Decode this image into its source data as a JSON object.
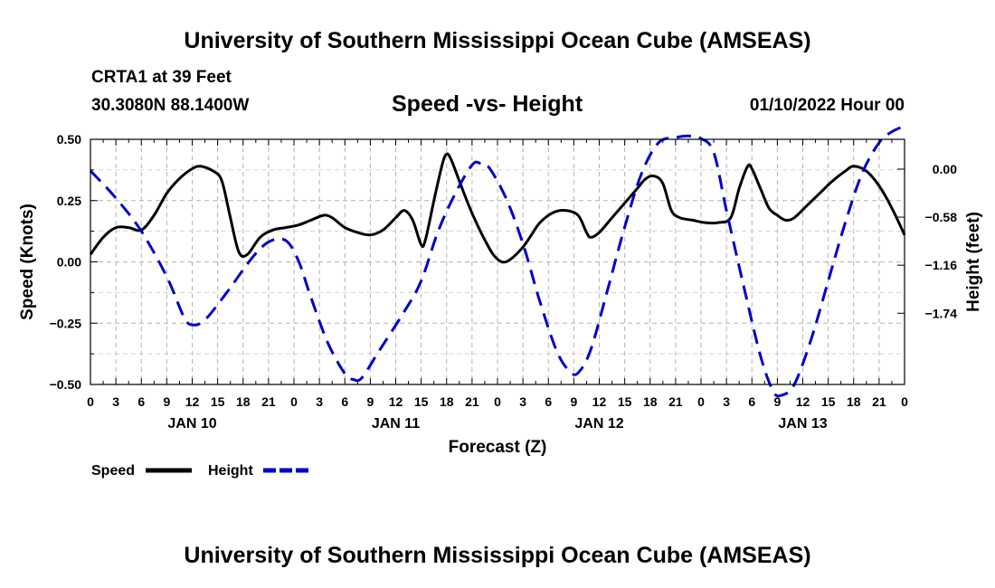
{
  "header": {
    "title": "University of Southern Mississippi Ocean Cube (AMSEAS)",
    "station": "CRTA1 at 39 Feet",
    "coords": "30.3080N  88.1400W",
    "subtitle": "Speed -vs- Height",
    "datetime": "01/10/2022 Hour 00"
  },
  "footer": {
    "title": "University of Southern Mississippi Ocean Cube (AMSEAS)"
  },
  "chart_data": {
    "type": "line",
    "title": "Speed -vs- Height",
    "xlabel": "Forecast (Z)",
    "ylabel": "Speed (Knots)",
    "y2label": "Height (feet)",
    "x_unit": "forecast hours from 01/10/2022 00Z",
    "xlim": [
      0,
      96
    ],
    "ylim": [
      -0.5,
      0.5
    ],
    "y2lim": [
      -2.6,
      0.36
    ],
    "x_ticks": [
      0,
      3,
      6,
      9,
      12,
      15,
      18,
      21,
      24,
      27,
      30,
      33,
      36,
      39,
      42,
      45,
      48,
      51,
      54,
      57,
      60,
      63,
      66,
      69,
      72,
      75,
      78,
      81,
      84,
      87,
      90,
      93,
      96
    ],
    "x_tick_labels": [
      "0",
      "3",
      "6",
      "9",
      "12",
      "15",
      "18",
      "21",
      "0",
      "3",
      "6",
      "9",
      "12",
      "15",
      "18",
      "21",
      "0",
      "3",
      "6",
      "9",
      "12",
      "15",
      "18",
      "21",
      "0",
      "3",
      "6",
      "9",
      "12",
      "15",
      "18",
      "21",
      "0"
    ],
    "y_ticks": [
      0.5,
      0.25,
      0.0,
      -0.25,
      -0.5
    ],
    "y_tick_labels": [
      "0.50",
      "0.25",
      "0.00",
      "−0.25",
      "−0.50"
    ],
    "y2_ticks": [
      0.0,
      -0.58,
      -1.16,
      -1.74
    ],
    "y2_tick_labels": [
      "0.00",
      "−0.58",
      "−1.16",
      "−1.74"
    ],
    "date_labels": [
      {
        "x": 12,
        "label": "JAN 10"
      },
      {
        "x": 36,
        "label": "JAN 11"
      },
      {
        "x": 60,
        "label": "JAN 12"
      },
      {
        "x": 84,
        "label": "JAN 13"
      }
    ],
    "grid": true,
    "legend_position": "bottom-left",
    "series": [
      {
        "name": "Speed",
        "axis": "left",
        "color": "#000000",
        "dash": "solid",
        "points": [
          [
            0,
            0.03
          ],
          [
            1.5,
            0.1
          ],
          [
            3,
            0.14
          ],
          [
            4.5,
            0.14
          ],
          [
            6,
            0.13
          ],
          [
            7.5,
            0.19
          ],
          [
            9,
            0.28
          ],
          [
            10.5,
            0.34
          ],
          [
            12,
            0.38
          ],
          [
            13,
            0.39
          ],
          [
            14.5,
            0.37
          ],
          [
            15.5,
            0.33
          ],
          [
            16.5,
            0.18
          ],
          [
            17.5,
            0.04
          ],
          [
            18.5,
            0.03
          ],
          [
            20,
            0.1
          ],
          [
            21.5,
            0.13
          ],
          [
            23,
            0.14
          ],
          [
            24.5,
            0.15
          ],
          [
            26,
            0.17
          ],
          [
            27.5,
            0.19
          ],
          [
            28.5,
            0.18
          ],
          [
            30,
            0.14
          ],
          [
            31.5,
            0.12
          ],
          [
            33,
            0.11
          ],
          [
            34.5,
            0.13
          ],
          [
            36,
            0.18
          ],
          [
            37,
            0.21
          ],
          [
            38,
            0.17
          ],
          [
            39,
            0.07
          ],
          [
            39.5,
            0.09
          ],
          [
            40.5,
            0.25
          ],
          [
            41.5,
            0.4
          ],
          [
            42,
            0.44
          ],
          [
            42.5,
            0.42
          ],
          [
            43.5,
            0.33
          ],
          [
            44.5,
            0.24
          ],
          [
            45.5,
            0.16
          ],
          [
            46.5,
            0.09
          ],
          [
            47.5,
            0.03
          ],
          [
            48.5,
            0.0
          ],
          [
            49.5,
            0.01
          ],
          [
            51,
            0.06
          ],
          [
            52,
            0.11
          ],
          [
            53,
            0.16
          ],
          [
            54.5,
            0.2
          ],
          [
            56,
            0.21
          ],
          [
            57.5,
            0.19
          ],
          [
            58.5,
            0.12
          ],
          [
            59,
            0.1
          ],
          [
            60,
            0.12
          ],
          [
            61.5,
            0.18
          ],
          [
            63,
            0.24
          ],
          [
            64.5,
            0.3
          ],
          [
            65.5,
            0.34
          ],
          [
            66.5,
            0.35
          ],
          [
            67.5,
            0.32
          ],
          [
            68.5,
            0.21
          ],
          [
            69.5,
            0.18
          ],
          [
            71,
            0.17
          ],
          [
            72.5,
            0.16
          ],
          [
            74,
            0.16
          ],
          [
            75.5,
            0.18
          ],
          [
            76.5,
            0.3
          ],
          [
            77.5,
            0.39
          ],
          [
            78,
            0.38
          ],
          [
            79,
            0.3
          ],
          [
            80,
            0.22
          ],
          [
            81,
            0.19
          ],
          [
            82,
            0.17
          ],
          [
            83,
            0.18
          ],
          [
            84.5,
            0.23
          ],
          [
            86,
            0.28
          ],
          [
            87.5,
            0.33
          ],
          [
            89,
            0.37
          ],
          [
            90,
            0.39
          ],
          [
            91.5,
            0.37
          ],
          [
            93,
            0.31
          ],
          [
            94.5,
            0.22
          ],
          [
            96,
            0.11
          ]
        ]
      },
      {
        "name": "Height",
        "axis": "right",
        "color": "#0000cc",
        "dash": "dashed",
        "points": [
          [
            0,
            -0.02
          ],
          [
            3,
            -0.35
          ],
          [
            6,
            -0.75
          ],
          [
            9,
            -1.3
          ],
          [
            11,
            -1.78
          ],
          [
            12,
            -1.88
          ],
          [
            13.5,
            -1.82
          ],
          [
            16,
            -1.5
          ],
          [
            19,
            -1.08
          ],
          [
            21,
            -0.88
          ],
          [
            23,
            -0.86
          ],
          [
            24.5,
            -1.1
          ],
          [
            26,
            -1.55
          ],
          [
            28,
            -2.1
          ],
          [
            30,
            -2.47
          ],
          [
            31,
            -2.54
          ],
          [
            32,
            -2.52
          ],
          [
            34,
            -2.2
          ],
          [
            37,
            -1.72
          ],
          [
            39,
            -1.35
          ],
          [
            41,
            -0.75
          ],
          [
            43,
            -0.3
          ],
          [
            45,
            0.05
          ],
          [
            46,
            0.07
          ],
          [
            47,
            0.02
          ],
          [
            49,
            -0.35
          ],
          [
            51,
            -0.9
          ],
          [
            53,
            -1.6
          ],
          [
            55,
            -2.2
          ],
          [
            56.5,
            -2.44
          ],
          [
            57.5,
            -2.46
          ],
          [
            59,
            -2.18
          ],
          [
            61,
            -1.45
          ],
          [
            63,
            -0.7
          ],
          [
            65,
            -0.05
          ],
          [
            67,
            0.32
          ],
          [
            69,
            0.38
          ],
          [
            70.5,
            0.4
          ],
          [
            72,
            0.37
          ],
          [
            73.5,
            0.2
          ],
          [
            75,
            -0.5
          ],
          [
            77,
            -1.4
          ],
          [
            79,
            -2.25
          ],
          [
            80.5,
            -2.68
          ],
          [
            81.5,
            -2.73
          ],
          [
            83,
            -2.6
          ],
          [
            85,
            -2.05
          ],
          [
            87,
            -1.35
          ],
          [
            89,
            -0.65
          ],
          [
            91,
            -0.05
          ],
          [
            93,
            0.32
          ],
          [
            94.5,
            0.45
          ],
          [
            96,
            0.52
          ]
        ]
      }
    ]
  }
}
